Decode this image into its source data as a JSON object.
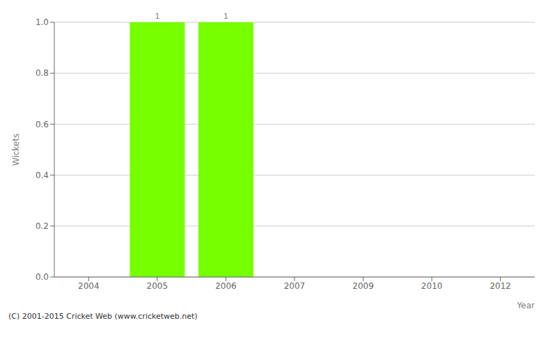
{
  "chart_data": {
    "type": "bar",
    "categories": [
      "2004",
      "2005",
      "2006",
      "2007",
      "2009",
      "2010",
      "2012"
    ],
    "values": [
      0,
      1,
      1,
      0,
      0,
      0,
      0
    ],
    "color": "#77ff00",
    "xlabel": "Year",
    "ylabel": "Wickets",
    "ylim": [
      0.0,
      1.0
    ],
    "yticks": [
      {
        "value": 0.0,
        "label": "0.0"
      },
      {
        "value": 0.2,
        "label": "0.2"
      },
      {
        "value": 0.4,
        "label": "0.4"
      },
      {
        "value": 0.6,
        "label": "0.6"
      },
      {
        "value": 0.8,
        "label": "0.8"
      },
      {
        "value": 1.0,
        "label": "1.0"
      }
    ],
    "grid": true,
    "data_labels": true,
    "annotations": [
      "(C) 2001-2015 Cricket Web (www.cricketweb.net)"
    ]
  }
}
